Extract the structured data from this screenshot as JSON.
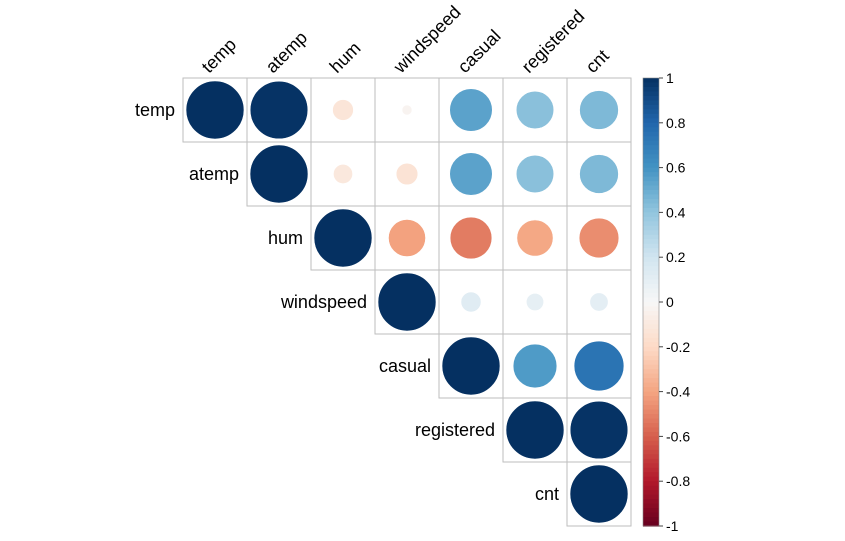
{
  "chart_data": {
    "type": "heatmap",
    "style": "upper-triangular correlation matrix, circle glyphs",
    "variables": [
      "temp",
      "atemp",
      "hum",
      "windspeed",
      "casual",
      "registered",
      "cnt"
    ],
    "matrix": [
      [
        1.0,
        0.99,
        -0.13,
        -0.03,
        0.54,
        0.42,
        0.45
      ],
      [
        0.99,
        1.0,
        -0.11,
        -0.14,
        0.54,
        0.42,
        0.45
      ],
      [
        -0.13,
        -0.11,
        1.0,
        -0.41,
        -0.52,
        -0.39,
        -0.47
      ],
      [
        -0.03,
        -0.14,
        -0.41,
        1.0,
        0.12,
        0.09,
        0.1
      ],
      [
        0.54,
        0.54,
        -0.52,
        0.12,
        1.0,
        0.57,
        0.74
      ],
      [
        0.42,
        0.42,
        -0.39,
        0.09,
        0.57,
        1.0,
        0.99
      ],
      [
        0.45,
        0.45,
        -0.47,
        0.1,
        0.74,
        0.99,
        1.0
      ]
    ],
    "colorbar": {
      "min": -1,
      "max": 1,
      "ticks": [
        "1",
        "0.8",
        "0.6",
        "0.4",
        "0.2",
        "0",
        "-0.2",
        "-0.4",
        "-0.6",
        "-0.8",
        "-1"
      ]
    },
    "colors": {
      "negative_strong": "#67001F",
      "neutral": "#F7F7F7",
      "positive_strong": "#053061",
      "grid": "#BEBEBE"
    }
  }
}
